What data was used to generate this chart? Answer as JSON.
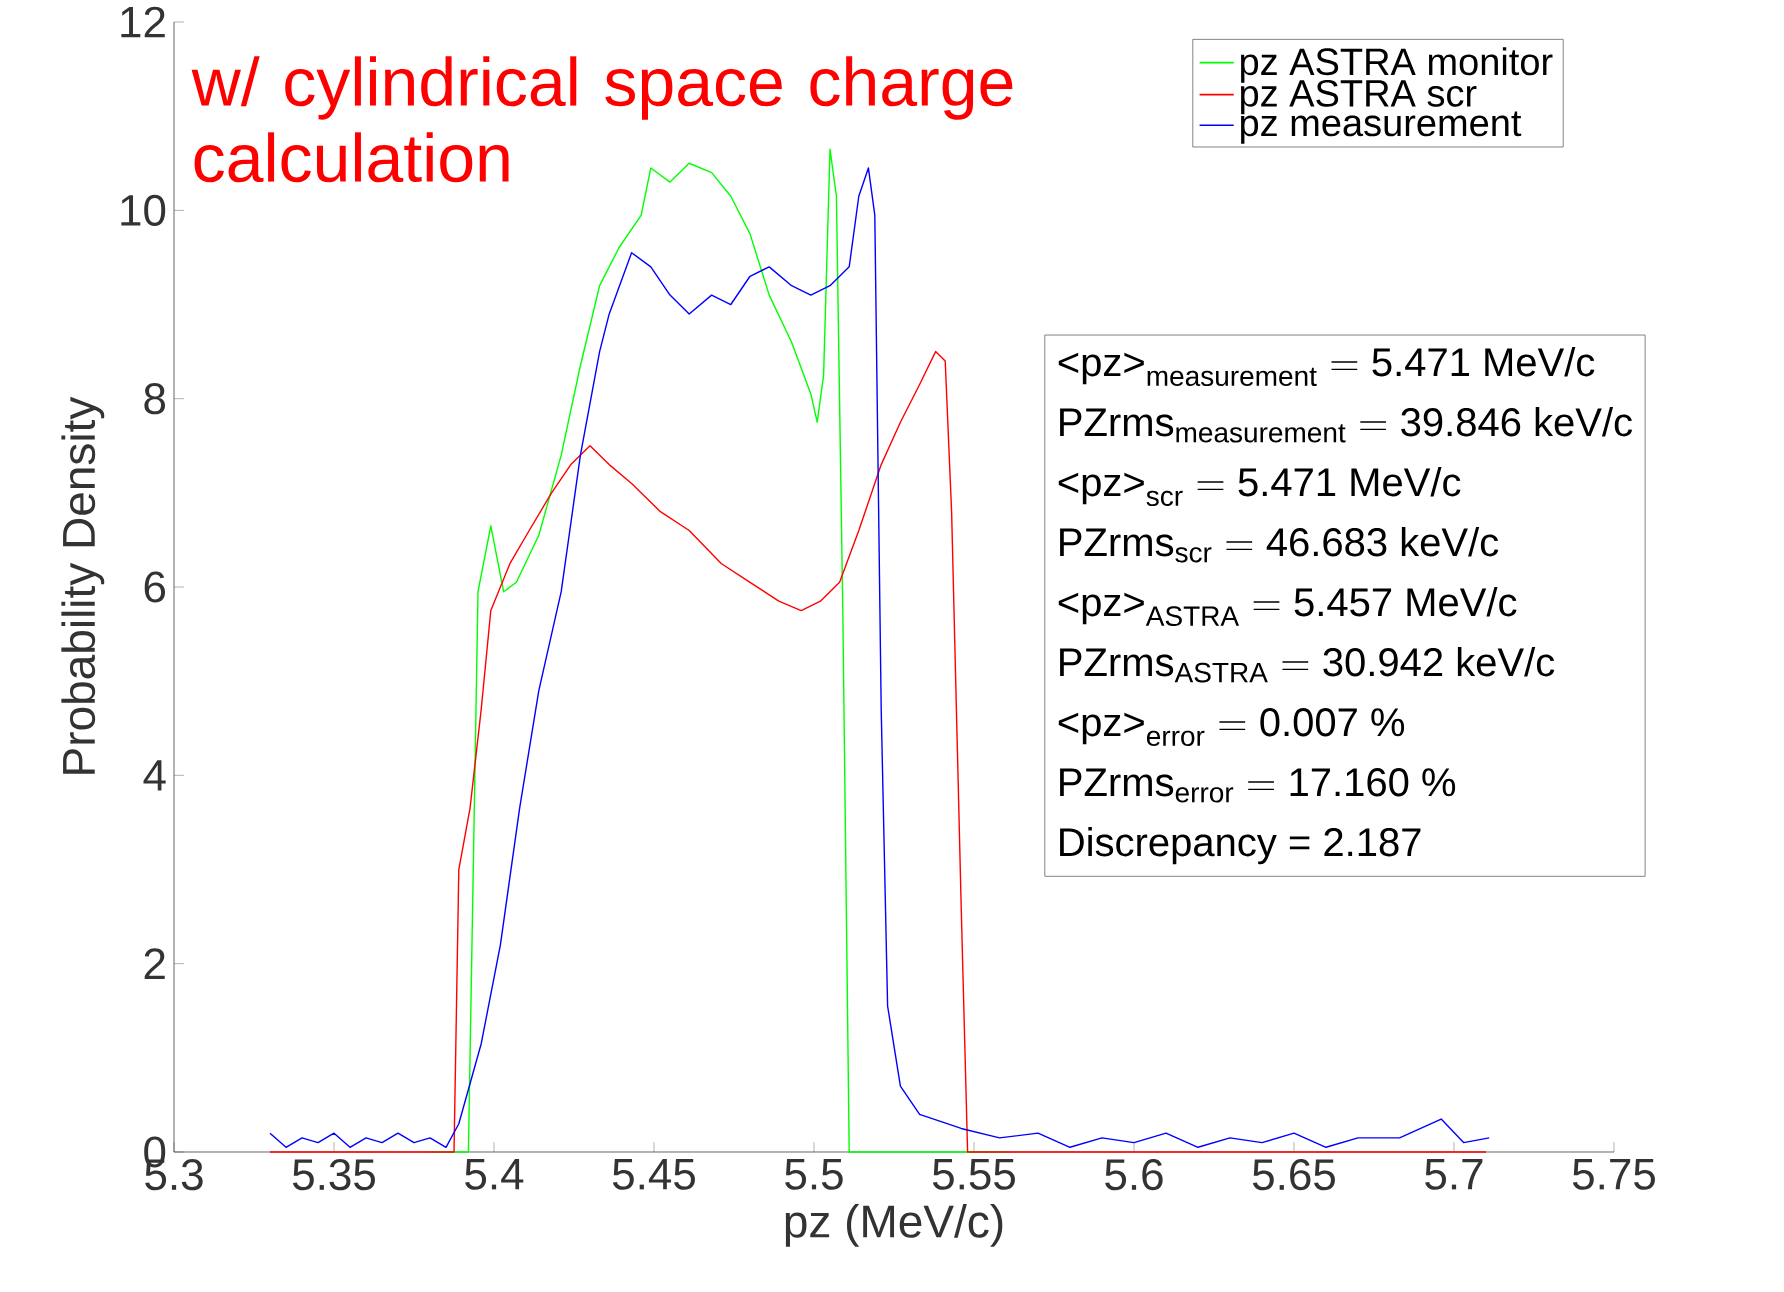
{
  "chart_data": {
    "type": "line",
    "xlabel": "pz (MeV/c)",
    "ylabel": "Probability Density",
    "xlim": [
      5.3,
      5.75
    ],
    "ylim": [
      0,
      12
    ],
    "xticks": [
      5.3,
      5.35,
      5.4,
      5.45,
      5.5,
      5.55,
      5.6,
      5.65,
      5.7,
      5.75
    ],
    "yticks": [
      0,
      2,
      4,
      6,
      8,
      10,
      12
    ],
    "grid": false,
    "legend": "top right",
    "marker": "none",
    "line_style": "solid",
    "series": [
      {
        "name": "pz ASTRA monitor",
        "color": "#00ff00",
        "x": [
          5.38,
          5.392,
          5.395,
          5.399,
          5.403,
          5.407,
          5.414,
          5.421,
          5.427,
          5.433,
          5.439,
          5.446,
          5.449,
          5.455,
          5.461,
          5.468,
          5.474,
          5.48,
          5.486,
          5.493,
          5.499,
          5.501,
          5.503,
          5.505,
          5.507,
          5.509,
          5.511,
          5.56
        ],
        "values": [
          0,
          0,
          5.95,
          6.65,
          5.95,
          6.05,
          6.55,
          7.4,
          8.35,
          9.2,
          9.6,
          9.95,
          10.45,
          10.3,
          10.5,
          10.4,
          10.15,
          9.75,
          9.1,
          8.6,
          8.05,
          7.75,
          8.25,
          10.65,
          10.15,
          5.75,
          0,
          0
        ]
      },
      {
        "name": "pz ASTRA scr",
        "color": "#ff0000",
        "x": [
          5.33,
          5.3875,
          5.389,
          5.3925,
          5.396,
          5.399,
          5.405,
          5.411,
          5.418,
          5.424,
          5.43,
          5.436,
          5.443,
          5.452,
          5.461,
          5.471,
          5.48,
          5.489,
          5.496,
          5.502,
          5.508,
          5.514,
          5.521,
          5.527,
          5.533,
          5.538,
          5.541,
          5.543,
          5.546,
          5.548,
          5.71
        ],
        "values": [
          0,
          0,
          3.0,
          3.65,
          4.7,
          5.75,
          6.25,
          6.6,
          7.0,
          7.3,
          7.5,
          7.3,
          7.1,
          6.8,
          6.6,
          6.25,
          6.05,
          5.85,
          5.75,
          5.85,
          6.05,
          6.6,
          7.3,
          7.75,
          8.15,
          8.5,
          8.4,
          6.8,
          2.6,
          0,
          0
        ]
      },
      {
        "name": "pz measurement",
        "color": "#0000ff",
        "x": [
          5.33,
          5.335,
          5.34,
          5.345,
          5.35,
          5.355,
          5.36,
          5.365,
          5.37,
          5.375,
          5.38,
          5.385,
          5.389,
          5.396,
          5.402,
          5.408,
          5.414,
          5.421,
          5.427,
          5.433,
          5.436,
          5.443,
          5.449,
          5.455,
          5.461,
          5.468,
          5.474,
          5.48,
          5.486,
          5.493,
          5.499,
          5.505,
          5.511,
          5.514,
          5.517,
          5.519,
          5.521,
          5.523,
          5.527,
          5.533,
          5.546,
          5.558,
          5.57,
          5.58,
          5.59,
          5.6,
          5.61,
          5.62,
          5.63,
          5.64,
          5.65,
          5.66,
          5.67,
          5.683,
          5.696,
          5.703,
          5.711
        ],
        "values": [
          0.2,
          0.05,
          0.15,
          0.1,
          0.2,
          0.05,
          0.15,
          0.1,
          0.2,
          0.1,
          0.15,
          0.05,
          0.3,
          1.15,
          2.2,
          3.65,
          4.9,
          5.95,
          7.4,
          8.5,
          8.9,
          9.55,
          9.4,
          9.1,
          8.9,
          9.1,
          9.0,
          9.3,
          9.4,
          9.2,
          9.1,
          9.2,
          9.4,
          10.15,
          10.45,
          9.95,
          4.7,
          1.55,
          0.7,
          0.4,
          0.25,
          0.15,
          0.2,
          0.05,
          0.15,
          0.1,
          0.2,
          0.05,
          0.15,
          0.1,
          0.2,
          0.05,
          0.15,
          0.15,
          0.35,
          0.1,
          0.15
        ]
      }
    ],
    "annotations": [
      "w/ cylindrical space charge calculation",
      "\\text{<pz>}_{\\text{measurement}} = \\text{5.471 MeV/c}",
      "\\text{PZrms}_{\\text{measurement}} = \\text{39.846 keV/c}",
      "\\text{<pz>}_{\\text{scr}} = \\text{5.471 MeV/c}",
      "\\text{PZrms}_{\\text{scr}} = \\text{46.683 keV/c}",
      "\\text{<pz>}_{\\text{ASTRA}} = \\text{5.457 MeV/c}",
      "\\text{PZrms}_{\\text{ASTRA}} = \\text{30.942 keV/c}",
      "\\text{<pz>}_{\\text{error}} = \\text{0.007 \\%}",
      "\\text{PZrms}_{\\text{error}} = \\text{17.160 \\%}",
      "Discrepancy = 2.187"
    ]
  }
}
